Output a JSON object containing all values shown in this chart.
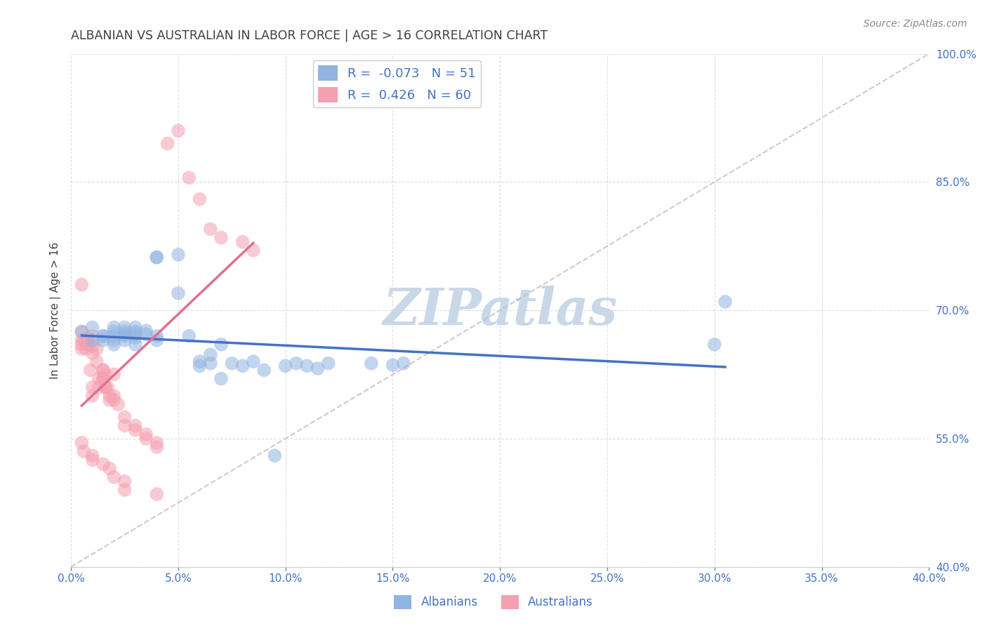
{
  "title": "ALBANIAN VS AUSTRALIAN IN LABOR FORCE | AGE > 16 CORRELATION CHART",
  "source_text": "Source: ZipAtlas.com",
  "xlabel": "",
  "ylabel": "In Labor Force | Age > 16",
  "xlim": [
    0.0,
    0.4
  ],
  "ylim": [
    0.4,
    1.0
  ],
  "xticks": [
    0.0,
    0.05,
    0.1,
    0.15,
    0.2,
    0.25,
    0.3,
    0.35,
    0.4
  ],
  "yticks": [
    0.4,
    0.55,
    0.7,
    0.85,
    1.0
  ],
  "ytick_labels": [
    "40.0%",
    "55.0%",
    "70.0%",
    "85.0%",
    "100.0%"
  ],
  "xtick_labels": [
    "0.0%",
    "5.0%",
    "10.0%",
    "15.0%",
    "20.0%",
    "25.0%",
    "30.0%",
    "35.0%",
    "40.0%"
  ],
  "albanian_R": -0.073,
  "albanian_N": 51,
  "australian_R": 0.426,
  "australian_N": 60,
  "albanian_color": "#91b4e0",
  "australian_color": "#f5a0b0",
  "albanian_line_color": "#4472c4",
  "australian_line_color": "#e07090",
  "reference_line_color": "#c0c0c0",
  "background_color": "#ffffff",
  "grid_color": "#d0d0d0",
  "title_color": "#404040",
  "axis_color": "#4472c4",
  "legend_text_color": "#4472c4",
  "watermark_color": "#c8d8e8",
  "albanian_x": [
    0.005,
    0.01,
    0.01,
    0.015,
    0.015,
    0.015,
    0.02,
    0.02,
    0.02,
    0.02,
    0.02,
    0.025,
    0.025,
    0.025,
    0.025,
    0.025,
    0.03,
    0.03,
    0.03,
    0.03,
    0.03,
    0.035,
    0.035,
    0.04,
    0.04,
    0.04,
    0.04,
    0.05,
    0.05,
    0.055,
    0.06,
    0.06,
    0.065,
    0.065,
    0.07,
    0.07,
    0.075,
    0.08,
    0.085,
    0.09,
    0.095,
    0.1,
    0.105,
    0.11,
    0.115,
    0.12,
    0.14,
    0.15,
    0.155,
    0.305,
    0.3
  ],
  "albanian_y": [
    0.675,
    0.68,
    0.665,
    0.67,
    0.665,
    0.67,
    0.68,
    0.67,
    0.675,
    0.665,
    0.66,
    0.67,
    0.675,
    0.665,
    0.672,
    0.68,
    0.675,
    0.668,
    0.66,
    0.672,
    0.68,
    0.676,
    0.672,
    0.762,
    0.762,
    0.67,
    0.665,
    0.72,
    0.765,
    0.67,
    0.635,
    0.64,
    0.648,
    0.638,
    0.66,
    0.62,
    0.638,
    0.635,
    0.64,
    0.63,
    0.53,
    0.635,
    0.638,
    0.635,
    0.632,
    0.638,
    0.638,
    0.636,
    0.638,
    0.71,
    0.66
  ],
  "australian_x": [
    0.005,
    0.005,
    0.005,
    0.005,
    0.005,
    0.006,
    0.007,
    0.008,
    0.008,
    0.008,
    0.009,
    0.01,
    0.01,
    0.01,
    0.01,
    0.01,
    0.012,
    0.012,
    0.013,
    0.013,
    0.015,
    0.015,
    0.015,
    0.015,
    0.016,
    0.016,
    0.016,
    0.017,
    0.018,
    0.018,
    0.02,
    0.02,
    0.02,
    0.022,
    0.025,
    0.025,
    0.03,
    0.03,
    0.035,
    0.035,
    0.04,
    0.04,
    0.045,
    0.05,
    0.055,
    0.06,
    0.065,
    0.07,
    0.08,
    0.085,
    0.005,
    0.006,
    0.01,
    0.01,
    0.015,
    0.018,
    0.02,
    0.025,
    0.025,
    0.04
  ],
  "australian_y": [
    0.675,
    0.73,
    0.665,
    0.66,
    0.655,
    0.665,
    0.655,
    0.667,
    0.665,
    0.66,
    0.63,
    0.65,
    0.658,
    0.67,
    0.61,
    0.6,
    0.64,
    0.655,
    0.62,
    0.61,
    0.62,
    0.63,
    0.63,
    0.62,
    0.625,
    0.61,
    0.61,
    0.61,
    0.6,
    0.595,
    0.625,
    0.6,
    0.595,
    0.59,
    0.575,
    0.565,
    0.565,
    0.56,
    0.555,
    0.55,
    0.545,
    0.54,
    0.895,
    0.91,
    0.855,
    0.83,
    0.795,
    0.785,
    0.78,
    0.77,
    0.545,
    0.535,
    0.53,
    0.525,
    0.52,
    0.515,
    0.505,
    0.5,
    0.49,
    0.485
  ],
  "dot_size": 200,
  "dot_alpha": 0.55,
  "figsize": [
    14.06,
    8.92
  ],
  "dpi": 100
}
